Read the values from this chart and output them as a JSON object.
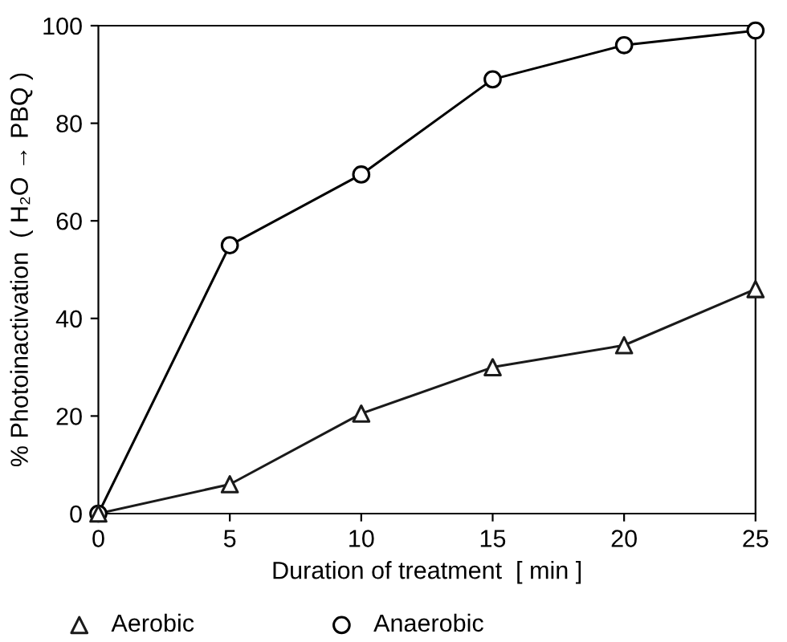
{
  "chart_data": {
    "type": "line",
    "xlabel": "Duration of treatment  [ min ]",
    "ylabel": "% Photoinactivation  ( H₂O → PBQ )",
    "x": [
      0,
      5,
      10,
      15,
      20,
      25
    ],
    "series": [
      {
        "name": "Aerobic",
        "color": "#1a1a1a",
        "marker": "triangle",
        "values": [
          0,
          6,
          20.5,
          30,
          34.5,
          46
        ]
      },
      {
        "name": "Anaerobic",
        "color": "#000000",
        "marker": "circle",
        "values": [
          0,
          55,
          69.5,
          89,
          96,
          99
        ]
      }
    ],
    "xlim": [
      0,
      25
    ],
    "xticks": [
      0,
      5,
      10,
      15,
      20,
      25
    ],
    "ylim": [
      0,
      100
    ],
    "yticks": [
      0,
      20,
      40,
      60,
      80,
      100
    ],
    "grid": false,
    "legend": "bottom",
    "line_style": "solid"
  }
}
